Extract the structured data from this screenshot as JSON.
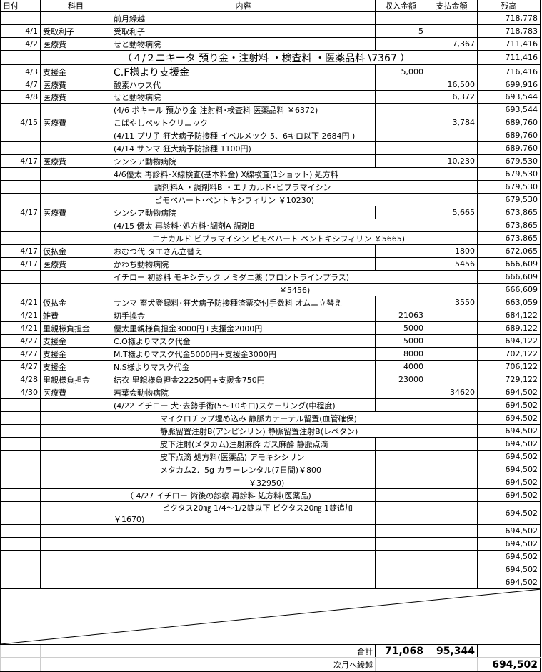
{
  "header": {
    "date": "日付",
    "category": "科目",
    "description": "内容",
    "income": "収入金額",
    "payment": "支払金額",
    "balance": "残高"
  },
  "rows": [
    {
      "date": "",
      "category": "",
      "description": "前月繰越",
      "income": "",
      "payment": "",
      "balance": "718,778"
    },
    {
      "date": "4/1",
      "category": "受取利子",
      "description": "受取利子",
      "income": "5",
      "payment": "",
      "balance": "718,783"
    },
    {
      "date": "4/2",
      "category": "医療費",
      "description": "せと動物病院",
      "income": "",
      "payment": "7,367",
      "balance": "711,416"
    },
    {
      "date": "",
      "category": "",
      "description": "（４/２ニキータ 預り金・注射料 ・検査料 ・医薬品料 \\7367 ）",
      "income": "",
      "payment": "",
      "balance": "711,416"
    },
    {
      "date": "4/3",
      "category": "支援金",
      "description": "C.F様より支援金",
      "income": "5,000",
      "payment": "",
      "balance": "716,416"
    },
    {
      "date": "4/7",
      "category": "医療費",
      "description": "酸素ハウス代",
      "income": "",
      "payment": "16,500",
      "balance": "699,916"
    },
    {
      "date": "4/8",
      "category": "医療費",
      "description": "せと動物病院",
      "income": "",
      "payment": "6,372",
      "balance": "693,544"
    },
    {
      "date": "",
      "category": "",
      "description": "(4/6  ポキール 預かり金  注射料･検査料  医薬品料  ￥6372)",
      "income": "",
      "payment": "",
      "balance": "693,544"
    },
    {
      "date": "4/15",
      "category": "医療費",
      "description": "こばやしペットクリニック",
      "income": "",
      "payment": "3,784",
      "balance": "689,760"
    },
    {
      "date": "",
      "category": "",
      "description": "(4/11 プリ子 狂犬病予防接種 イベルメック 5、6キロ以下 2684円 )",
      "income": "",
      "payment": "",
      "balance": "689,760"
    },
    {
      "date": "",
      "category": "",
      "description": "(4/14  サンマ  狂犬病予防接種          1100円)",
      "income": "",
      "payment": "",
      "balance": "689,760"
    },
    {
      "date": "4/17",
      "category": "医療費",
      "description": "シンシア動物病院",
      "income": "",
      "payment": "10,230",
      "balance": "679,530"
    },
    {
      "date": "",
      "category": "",
      "description": "4/6優太  再診料･X線検査(基本料金) X線検査(1ショット) 処方料",
      "income": "",
      "payment": "",
      "balance": "679,530"
    },
    {
      "date": "",
      "category": "",
      "description": "調剤料A ・調剤料B ・エナカルド･ビブラマイシン",
      "income": "",
      "payment": "",
      "balance": "679,530"
    },
    {
      "date": "",
      "category": "",
      "description": "ピモベハート･ベントキシフィリン         ￥10230)",
      "income": "",
      "payment": "",
      "balance": "679,530"
    },
    {
      "date": "4/17",
      "category": "医療費",
      "description": "シンシア動物病院",
      "income": "",
      "payment": "5,665",
      "balance": "673,865"
    },
    {
      "date": "",
      "category": "",
      "description": "(4/15  優太  再診料･処方料･調剤A 調剤B",
      "income": "",
      "payment": "",
      "balance": "673,865"
    },
    {
      "date": "",
      "category": "",
      "description": "エナカルド  ビブラマイシン  ピモベハート   ベントキシフィリン  ￥5665)",
      "income": "",
      "payment": "",
      "balance": "673,865"
    },
    {
      "date": "4/17",
      "category": "仮払金",
      "description": "おむつ代  タエさん立替え",
      "income": "",
      "payment": "1800",
      "balance": "672,065"
    },
    {
      "date": "4/17",
      "category": "医療費",
      "description": "かわち動物病院",
      "income": "",
      "payment": "5456",
      "balance": "666,609"
    },
    {
      "date": "",
      "category": "",
      "description": "イチロー   初診料  モキシデック    ノミダニ薬    (フロントラインプラス)",
      "income": "",
      "payment": "",
      "balance": "666,609"
    },
    {
      "date": "",
      "category": "",
      "description": "￥5456)",
      "income": "",
      "payment": "",
      "balance": "666,609"
    },
    {
      "date": "4/21",
      "category": "仮払金",
      "description": "サンマ  畜犬登録料･狂犬病予防接種済票交付手数料  オムニ立替え",
      "income": "",
      "payment": "3550",
      "balance": "663,059"
    },
    {
      "date": "4/21",
      "category": "雑費",
      "description": "切手換金",
      "income": "21063",
      "payment": "",
      "balance": "684,122"
    },
    {
      "date": "4/21",
      "category": "里親様負担金",
      "description": "優太里親様負担金3000円+支援金2000円",
      "income": "5000",
      "payment": "",
      "balance": "689,122"
    },
    {
      "date": "4/27",
      "category": "支援金",
      "description": "C.O様よりマスク代金",
      "income": "5000",
      "payment": "",
      "balance": "694,122"
    },
    {
      "date": "4/27",
      "category": "支援金",
      "description": "M.T様よりマスク代金5000円+支援金3000円",
      "income": "8000",
      "payment": "",
      "balance": "702,122"
    },
    {
      "date": "4/27",
      "category": "支援金",
      "description": "N.S様よりマスク代金",
      "income": "4000",
      "payment": "",
      "balance": "706,122"
    },
    {
      "date": "4/28",
      "category": "里親様負担金",
      "description": "結衣  里親様負担金22250円+支援金750円",
      "income": "23000",
      "payment": "",
      "balance": "729,122"
    },
    {
      "date": "4/30",
      "category": "医療費",
      "description": "若葉会動物病院",
      "income": "",
      "payment": "34620",
      "balance": "694,502"
    },
    {
      "date": "",
      "category": "",
      "description": "(4/22  イチロー   犬･去勢手術(5～10キロ)スケーリング(中程度)",
      "income": "",
      "payment": "",
      "balance": "694,502"
    },
    {
      "date": "",
      "category": "",
      "description": "マイクロチップ埋め込み    静脈カテーテル留置(血管確保)",
      "income": "",
      "payment": "",
      "balance": "694,502"
    },
    {
      "date": "",
      "category": "",
      "description": "静脈留置注射B(アンピシリン)  静脈留置注射B(レベタン)",
      "income": "",
      "payment": "",
      "balance": "694,502"
    },
    {
      "date": "",
      "category": "",
      "description": "皮下注射(メタカム)注射麻酔  ガス麻酔  静脈点滴",
      "income": "",
      "payment": "",
      "balance": "694,502"
    },
    {
      "date": "",
      "category": "",
      "description": "皮下点滴  処方料(医薬品)  アモキシシリン",
      "income": "",
      "payment": "",
      "balance": "694,502"
    },
    {
      "date": "",
      "category": "",
      "description": "メタカム2．5g  カラーレンタル(7日間)￥800",
      "income": "",
      "payment": "",
      "balance": "694,502"
    },
    {
      "date": "",
      "category": "",
      "description": "￥32950)",
      "income": "",
      "payment": "",
      "balance": "694,502"
    },
    {
      "date": "",
      "category": "",
      "description": "（ 4/27  イチロー  術後の診察   再診料  処方料(医薬品)",
      "income": "",
      "payment": "",
      "balance": "694,502"
    },
    {
      "date": "",
      "category": "",
      "description": "ビクタス20㎎  1/4～1/2錠以下   ビクタス20㎎  1錠追加",
      "description2": "￥1670)",
      "income": "",
      "payment": "",
      "balance": "694,502"
    },
    {
      "date": "",
      "category": "",
      "description": "",
      "income": "",
      "payment": "",
      "balance": "694,502"
    },
    {
      "date": "",
      "category": "",
      "description": "",
      "income": "",
      "payment": "",
      "balance": "694,502"
    },
    {
      "date": "",
      "category": "",
      "description": "",
      "income": "",
      "payment": "",
      "balance": "694,502"
    },
    {
      "date": "",
      "category": "",
      "description": "",
      "income": "",
      "payment": "",
      "balance": "694,502"
    },
    {
      "date": "",
      "category": "",
      "description": "",
      "income": "",
      "payment": "",
      "balance": "694,502"
    }
  ],
  "footer": {
    "total_label": "合計",
    "total_income": "71,068",
    "total_payment": "95,344",
    "carry_label": "次月へ繰越",
    "carry_balance": "694,502"
  }
}
